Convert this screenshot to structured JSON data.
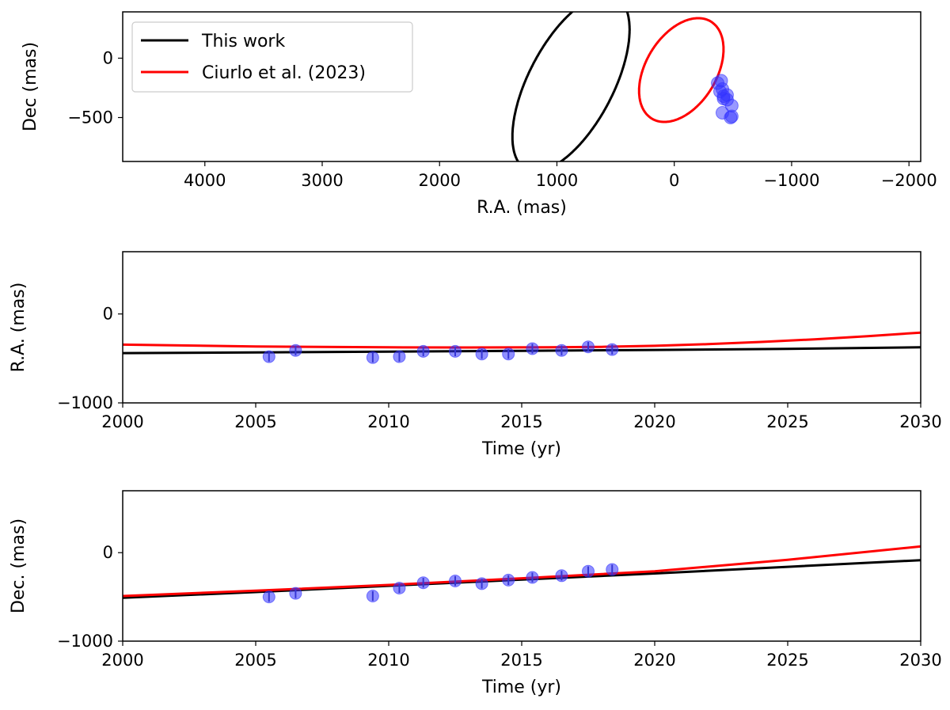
{
  "chart_data": [
    {
      "type": "line",
      "xlabel": "R.A. (mas)",
      "ylabel": "Dec (mas)",
      "x_range": [
        4700,
        -2100
      ],
      "y_range": [
        -870,
        390
      ],
      "x_ticks": [
        4000,
        3000,
        2000,
        1000,
        0,
        -1000,
        -2000
      ],
      "x_tick_labels": [
        "4000",
        "3000",
        "2000",
        "1000",
        "0",
        "−1000",
        "−2000"
      ],
      "y_ticks": [
        0,
        -500
      ],
      "y_tick_labels": [
        "0",
        "−500"
      ],
      "grid": false,
      "legend_position": "top-left",
      "series": [
        {
          "name": "This work",
          "color": "#000000",
          "kind": "orbit",
          "orbit_center": [
            880,
            -210
          ],
          "orbit_axes": [
            820,
            360
          ],
          "orbit_angle_deg": -62
        },
        {
          "name": "Ciurlo et al. (2023)",
          "color": "#ff0000",
          "kind": "orbit",
          "orbit_center": [
            -60,
            -100
          ],
          "orbit_axes": [
            480,
            300
          ],
          "orbit_angle_deg": -58
        },
        {
          "name": "data",
          "color": "#3333ff",
          "kind": "points",
          "points": [
            [
              -480,
              -500
            ],
            [
              -410,
              -460
            ],
            [
              -490,
              -490
            ],
            [
              -490,
              -400
            ],
            [
              -420,
              -340
            ],
            [
              -420,
              -320
            ],
            [
              -450,
              -350
            ],
            [
              -450,
              -310
            ],
            [
              -390,
              -280
            ],
            [
              -410,
              -260
            ],
            [
              -370,
              -210
            ],
            [
              -400,
              -190
            ]
          ]
        }
      ]
    },
    {
      "type": "line",
      "xlabel": "Time (yr)",
      "ylabel": "R.A. (mas)",
      "x_range": [
        2000,
        2030
      ],
      "y_range": [
        -1000,
        700
      ],
      "x_ticks": [
        2000,
        2005,
        2010,
        2015,
        2020,
        2025,
        2030
      ],
      "x_tick_labels": [
        "2000",
        "2005",
        "2010",
        "2015",
        "2020",
        "2025",
        "2030"
      ],
      "y_ticks": [
        0,
        -1000
      ],
      "y_tick_labels": [
        "0",
        "−1000"
      ],
      "grid": false,
      "series": [
        {
          "name": "This work",
          "color": "#000000",
          "x": [
            2000,
            2005,
            2010,
            2015,
            2020,
            2025,
            2030
          ],
          "y": [
            -440,
            -432,
            -423,
            -414,
            -405,
            -392,
            -375
          ]
        },
        {
          "name": "Ciurlo et al. (2023)",
          "color": "#ff0000",
          "x": [
            2000,
            2005,
            2010,
            2013,
            2016,
            2018,
            2020,
            2022,
            2024,
            2026,
            2028,
            2030
          ],
          "y": [
            -345,
            -365,
            -375,
            -377,
            -375,
            -370,
            -358,
            -340,
            -315,
            -285,
            -250,
            -210
          ]
        },
        {
          "name": "data",
          "color": "#3333ff",
          "x": [
            2005.5,
            2006.5,
            2009.4,
            2010.4,
            2011.3,
            2012.5,
            2013.5,
            2014.5,
            2015.4,
            2016.5,
            2017.5,
            2018.4
          ],
          "y": [
            -480,
            -410,
            -490,
            -480,
            -420,
            -420,
            -450,
            -450,
            -390,
            -410,
            -370,
            -400
          ],
          "err": [
            55,
            55,
            55,
            55,
            55,
            55,
            55,
            55,
            55,
            55,
            55,
            55
          ]
        }
      ]
    },
    {
      "type": "line",
      "xlabel": "Time (yr)",
      "ylabel": "Dec. (mas)",
      "x_range": [
        2000,
        2030
      ],
      "y_range": [
        -1000,
        700
      ],
      "x_ticks": [
        2000,
        2005,
        2010,
        2015,
        2020,
        2025,
        2030
      ],
      "x_tick_labels": [
        "2000",
        "2005",
        "2010",
        "2015",
        "2020",
        "2025",
        "2030"
      ],
      "y_ticks": [
        0,
        -1000
      ],
      "y_tick_labels": [
        "0",
        "−1000"
      ],
      "grid": false,
      "series": [
        {
          "name": "This work",
          "color": "#000000",
          "x": [
            2000,
            2005,
            2010,
            2015,
            2020,
            2025,
            2030
          ],
          "y": [
            -510,
            -445,
            -375,
            -305,
            -235,
            -160,
            -85
          ]
        },
        {
          "name": "Ciurlo et al. (2023)",
          "color": "#ff0000",
          "x": [
            2000,
            2005,
            2010,
            2015,
            2020,
            2025,
            2030
          ],
          "y": [
            -490,
            -430,
            -365,
            -290,
            -210,
            -80,
            70
          ]
        },
        {
          "name": "data",
          "color": "#3333ff",
          "x": [
            2005.5,
            2006.5,
            2009.4,
            2010.4,
            2011.3,
            2012.5,
            2013.5,
            2014.5,
            2015.4,
            2016.5,
            2017.5,
            2018.4
          ],
          "y": [
            -500,
            -460,
            -490,
            -400,
            -340,
            -320,
            -350,
            -310,
            -280,
            -260,
            -210,
            -190
          ],
          "err": [
            55,
            55,
            55,
            55,
            55,
            55,
            55,
            55,
            55,
            55,
            55,
            55
          ]
        }
      ]
    }
  ]
}
